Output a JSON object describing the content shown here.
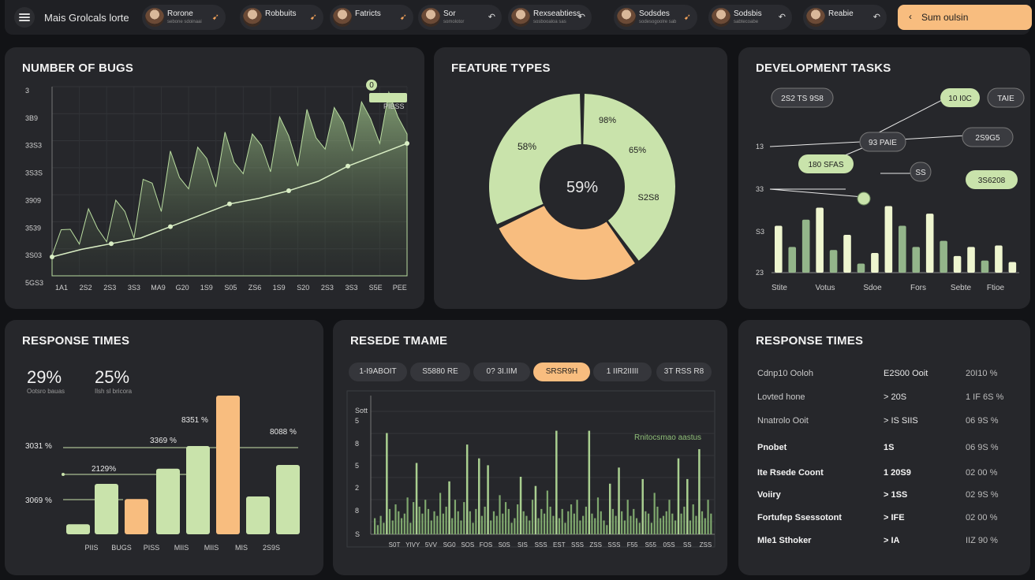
{
  "header": {
    "app_title": "Mais Grolcals lorte",
    "users": [
      {
        "name": "Rorone",
        "sub": "sebone sdoinaai",
        "action": "orange"
      },
      {
        "name": "Robbuits",
        "sub": "",
        "action": "orange"
      },
      {
        "name": "Fatricts",
        "sub": "",
        "action": "orange"
      },
      {
        "name": "Sor",
        "sub": "somolotor",
        "action": "white"
      },
      {
        "name": "Rexseabtiess",
        "sub": "sosbooaloa sas",
        "action": "white"
      },
      {
        "name": "Sodsdes",
        "sub": "sodesogoolre sab",
        "action": "orange"
      },
      {
        "name": "Sodsbis",
        "sub": "sabtecoabe",
        "action": "white"
      },
      {
        "name": "Reabie",
        "sub": "",
        "action": "white"
      }
    ],
    "summary_button": "Sum oulsin"
  },
  "colors": {
    "green": "#c9e3ab",
    "green_dark": "#93b58a",
    "orange": "#f8bd7f",
    "panel": "#26272b"
  },
  "bugs": {
    "title": "NUMBER OF BUGS",
    "y_ticks": [
      "3",
      "3B9",
      "33S3",
      "3S3S",
      "3909",
      "3539",
      "3S03",
      "5GS3"
    ],
    "x_ticks": [
      "1A1",
      "2S2",
      "2S3",
      "3S3",
      "MA9",
      "G20",
      "1S9",
      "S05",
      "ZS6",
      "1S9",
      "S20",
      "2S3",
      "3S3",
      "S5E",
      "PEE"
    ],
    "badge_value": "0",
    "badge_label": "PIBSS",
    "area_values": [
      18,
      22,
      27,
      24,
      33,
      31,
      36,
      34,
      40,
      38,
      45,
      55,
      52,
      60,
      58,
      64,
      62,
      68,
      65,
      70,
      66,
      72,
      69,
      75,
      73,
      78,
      80,
      76,
      82,
      79,
      85,
      83,
      87,
      84,
      86,
      89,
      88,
      91,
      90,
      93
    ],
    "trend_values": [
      10,
      14,
      17,
      20,
      26,
      32,
      38,
      41,
      45,
      50,
      58,
      64,
      70
    ]
  },
  "features": {
    "title": "FEATURE TYPES",
    "center": "59%",
    "slices": [
      {
        "label": "58%",
        "value": 40,
        "color": "#c9e3ab"
      },
      {
        "label": "98%",
        "value": 28,
        "color": "#f8bd7f"
      },
      {
        "label": "",
        "value": 32,
        "color": "#c9e3ab"
      }
    ],
    "extra_labels": [
      "65%",
      "S2S8"
    ]
  },
  "dev": {
    "title": "DEVELOPMENT TASKS",
    "y_ticks": [
      "13",
      "33",
      "S3",
      "23"
    ],
    "x_labels": [
      "Stite",
      "Votus",
      "Sdoe",
      "Fors",
      "Sebte",
      "Ftioe"
    ],
    "nodes": [
      {
        "label": "2S2 TS 9S8",
        "style": "dark"
      },
      {
        "label": "10 I0C",
        "style": "green"
      },
      {
        "label": "TAIE",
        "style": "dark"
      },
      {
        "label": "93 PAIE",
        "style": "dark"
      },
      {
        "label": "2S9G5",
        "style": "dark"
      },
      {
        "label": "180 SFAS",
        "style": "green"
      },
      {
        "label": "SS",
        "style": "dark"
      },
      {
        "label": "3S6208",
        "style": "green"
      }
    ],
    "bars": [
      {
        "v": 62,
        "c": "light"
      },
      {
        "v": 34,
        "c": "dark"
      },
      {
        "v": 70,
        "c": "dark"
      },
      {
        "v": 86,
        "c": "light"
      },
      {
        "v": 30,
        "c": "dark"
      },
      {
        "v": 50,
        "c": "light"
      },
      {
        "v": 12,
        "c": "dark"
      },
      {
        "v": 26,
        "c": "light"
      },
      {
        "v": 88,
        "c": "light"
      },
      {
        "v": 62,
        "c": "dark"
      },
      {
        "v": 34,
        "c": "dark"
      },
      {
        "v": 78,
        "c": "light"
      },
      {
        "v": 42,
        "c": "dark"
      },
      {
        "v": 22,
        "c": "light"
      },
      {
        "v": 34,
        "c": "light"
      },
      {
        "v": 16,
        "c": "dark"
      },
      {
        "v": 36,
        "c": "light"
      },
      {
        "v": 14,
        "c": "light"
      }
    ]
  },
  "response_left": {
    "title": "RESPONSE TIMES",
    "stats": [
      {
        "value": "29%",
        "sub": "Ootsro bauas"
      },
      {
        "value": "25%",
        "sub": "Ilsh sl bricora"
      }
    ],
    "line_labels": [
      "8351 %",
      "3369 %",
      "8088 %",
      "3031 %",
      "2129%",
      "3069 %"
    ],
    "x_labels": [
      "PIIS",
      "BUGS",
      "PISS",
      "MIIS",
      "MIIS",
      "MIS",
      "2S9S"
    ],
    "bars": [
      {
        "v": 8,
        "c": "green"
      },
      {
        "v": 40,
        "c": "green"
      },
      {
        "v": 28,
        "c": "orange"
      },
      {
        "v": 52,
        "c": "green"
      },
      {
        "v": 70,
        "c": "green"
      },
      {
        "v": 110,
        "c": "orange"
      },
      {
        "v": 30,
        "c": "green"
      },
      {
        "v": 55,
        "c": "green"
      }
    ]
  },
  "resede": {
    "title": "RESEDE TMAME",
    "tabs": [
      "1-I9ABOIT",
      "S5880 RE",
      "0? 3I.IIM",
      "SRSR9H",
      "1 IIR2IIIII",
      "3T RSS R8"
    ],
    "active_tab": 3,
    "y_ticks": [
      "Sott",
      "5",
      "8",
      "5",
      "2",
      "8",
      "S"
    ],
    "x_labels": [
      "S0T",
      "YIVY",
      "5VV",
      "SG0",
      "SOS",
      "FOS",
      "S0S",
      "SIS",
      "SSS",
      "EST",
      "SSS",
      "ZSS",
      "SSS",
      "F55",
      "S55",
      "0SS",
      "SS",
      "ZSS"
    ],
    "annotation": "Rnitocsmao aastus",
    "values": [
      14,
      8,
      16,
      10,
      88,
      22,
      12,
      26,
      20,
      14,
      18,
      32,
      10,
      28,
      62,
      24,
      18,
      30,
      22,
      12,
      20,
      16,
      36,
      18,
      24,
      46,
      14,
      30,
      20,
      12,
      28,
      78,
      20,
      10,
      22,
      66,
      16,
      24,
      60,
      12,
      20,
      16,
      34,
      18,
      28,
      22,
      10,
      14,
      26,
      50,
      20,
      16,
      12,
      30,
      42,
      14,
      22,
      18,
      38,
      24,
      16,
      90,
      14,
      22,
      10,
      20,
      26,
      18,
      30,
      12,
      16,
      24,
      90,
      18,
      14,
      32,
      20,
      12,
      8,
      44,
      22,
      16,
      58,
      20,
      12,
      30,
      16,
      22,
      14,
      10,
      48,
      20,
      18,
      10,
      36,
      24,
      14,
      16,
      20,
      30,
      18,
      12,
      66,
      18,
      24,
      48,
      12,
      26,
      16,
      74,
      20,
      14,
      30,
      18
    ]
  },
  "response_right": {
    "title": "RESPONSE TIMES",
    "rows": [
      {
        "name": "Cdnp10 Ooloh",
        "v1": "E2S00 Ooit",
        "v2": "20I10 %",
        "bold": false
      },
      {
        "name": "Lovted hone",
        "v1": "> 20S",
        "v2": "1 IF 6S %",
        "bold": false
      },
      {
        "name": "Nnatrolo Ooit",
        "v1": "> IS SIIS",
        "v2": "06 9S %",
        "bold": false
      },
      {
        "name": "Pnobet",
        "v1": "1S",
        "v2": "06 9S %",
        "bold": true
      },
      {
        "name": "Ite Rsede Coont",
        "v1": "1 20S9",
        "v2": "02 00 %",
        "bold": true
      },
      {
        "name": "Voiiry",
        "v1": "> 1SS",
        "v2": "02 9S %",
        "bold": true
      },
      {
        "name": "Fortufep Ssessotont",
        "v1": "> IFE",
        "v2": "02 00 %",
        "bold": true
      },
      {
        "name": "Mle1 Sthoker",
        "v1": "> IA",
        "v2": "IIZ 90 %",
        "bold": true
      }
    ]
  }
}
